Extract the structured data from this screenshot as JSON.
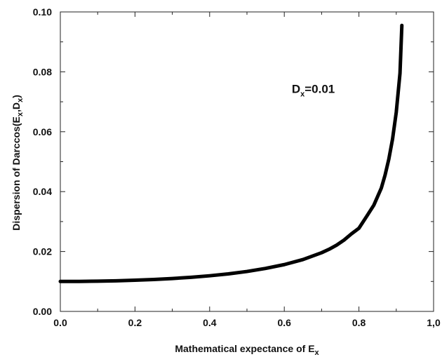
{
  "chart_data": {
    "type": "line",
    "title": "",
    "xlabel": {
      "main": "Mathematical expectance of ",
      "var": "E",
      "sub": "x"
    },
    "ylabel": {
      "pre": "Dispersion of Darccos(",
      "v1": "E",
      "s1": "x",
      "sep": ",",
      "v2": "D",
      "s2": "x",
      "post": ")"
    },
    "xlim": [
      0,
      1
    ],
    "ylim": [
      0,
      0.1
    ],
    "x_ticks": [
      {
        "value": 0.0,
        "label": "0.0"
      },
      {
        "value": 0.2,
        "label": "0.2"
      },
      {
        "value": 0.4,
        "label": "0.4"
      },
      {
        "value": 0.6,
        "label": "0.6"
      },
      {
        "value": 0.8,
        "label": "0.8"
      },
      {
        "value": 1.0,
        "label": "1,0"
      }
    ],
    "y_ticks": [
      {
        "value": 0.0,
        "label": "0.00"
      },
      {
        "value": 0.02,
        "label": "0.02"
      },
      {
        "value": 0.04,
        "label": "0.04"
      },
      {
        "value": 0.06,
        "label": "0.06"
      },
      {
        "value": 0.08,
        "label": "0.08"
      },
      {
        "value": 0.1,
        "label": "0.10"
      }
    ],
    "annotation": {
      "var": "D",
      "sub": "x",
      "rest": "=0.01",
      "x": 0.62,
      "y": 0.073
    },
    "grid": false,
    "series": [
      {
        "color": "#000000",
        "x": [
          0,
          0.05,
          0.1,
          0.15,
          0.2,
          0.25,
          0.3,
          0.35,
          0.4,
          0.45,
          0.5,
          0.55,
          0.6,
          0.65,
          0.7,
          0.72,
          0.74,
          0.76,
          0.78,
          0.8,
          0.82,
          0.84,
          0.86,
          0.87,
          0.88,
          0.89,
          0.9,
          0.91,
          0.915
        ],
        "y": [
          0.01,
          0.01002,
          0.0101,
          0.01023,
          0.01042,
          0.01067,
          0.01099,
          0.0114,
          0.0119,
          0.01253,
          0.01333,
          0.01436,
          0.01563,
          0.01732,
          0.0196,
          0.02075,
          0.02212,
          0.02381,
          0.02591,
          0.02778,
          0.0316,
          0.0355,
          0.0412,
          0.0455,
          0.0508,
          0.0575,
          0.0665,
          0.0795,
          0.0955
        ]
      }
    ]
  }
}
